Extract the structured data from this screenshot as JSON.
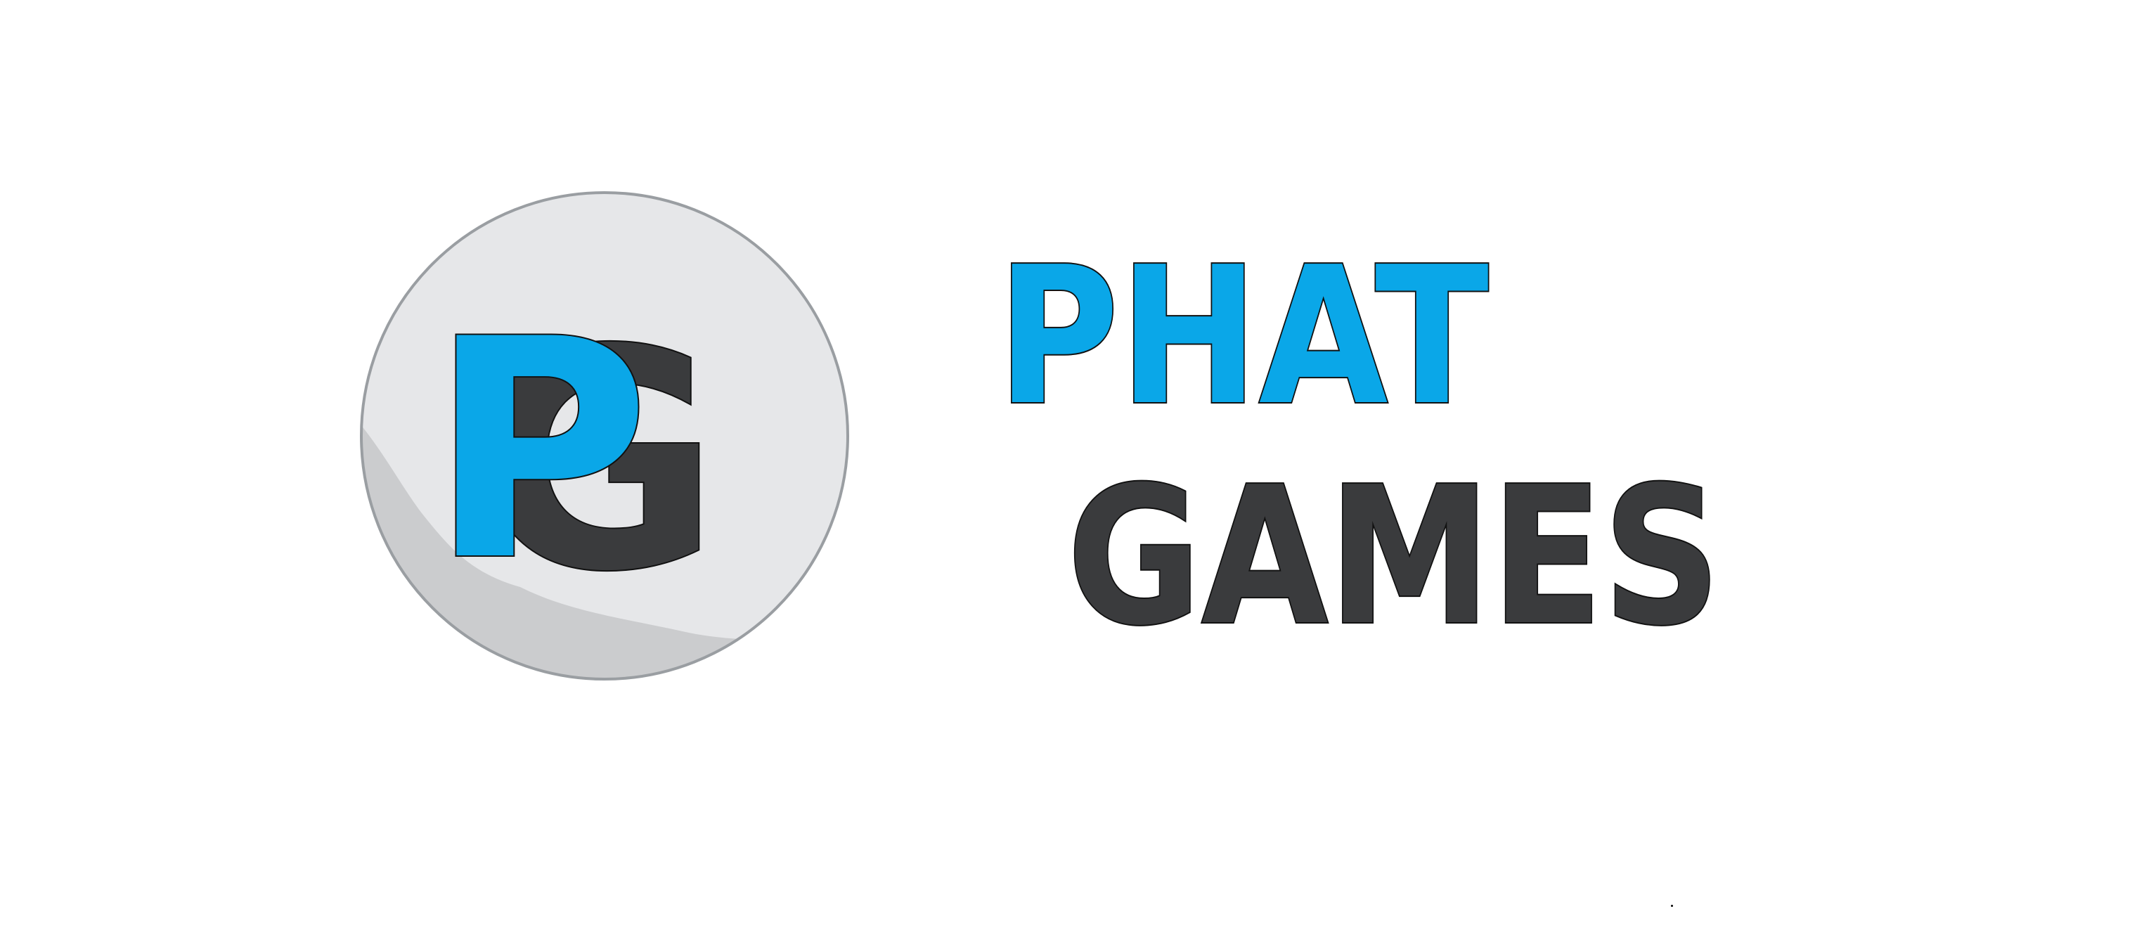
{
  "logo": {
    "monogram_first": "P",
    "monogram_second": "G",
    "word_top": "PHAT",
    "word_bottom": "GAMES"
  },
  "colors": {
    "background": "#ffffff",
    "brand_blue": "#0aa7e8",
    "brand_dark": "#3a3b3d",
    "outline": "#111111",
    "disc_light": "#e6e7e9",
    "disc_shade": "#cbccce",
    "disc_rim": "#9a9ea2"
  }
}
